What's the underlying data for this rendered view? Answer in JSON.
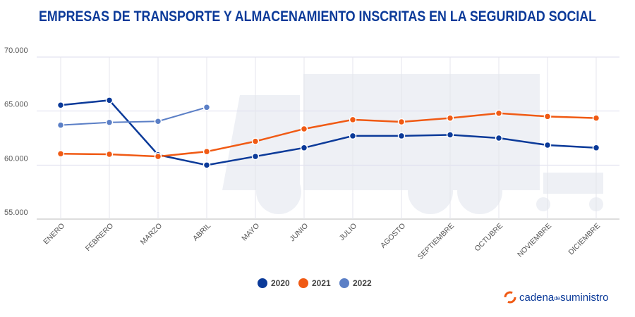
{
  "chart_data": {
    "type": "line",
    "title": "EMPRESAS DE TRANSPORTE Y ALMACENAMIENTO INSCRITAS EN LA SEGURIDAD SOCIAL",
    "categories": [
      "ENERO",
      "FEBRERO",
      "MARZO",
      "ABRIL",
      "MAYO",
      "JUNIO",
      "JULIO",
      "AGOSTO",
      "SEPTIEMBRE",
      "OCTUBRE",
      "NOVIEMBRE",
      "DICIEMBRE"
    ],
    "series": [
      {
        "name": "2020",
        "color": "#0b3a99",
        "values": [
          65550,
          66000,
          60950,
          60000,
          60800,
          61600,
          62700,
          62700,
          62800,
          62500,
          61850,
          61600
        ]
      },
      {
        "name": "2021",
        "color": "#f05a14",
        "values": [
          61050,
          61000,
          60800,
          61250,
          62200,
          63350,
          64200,
          64000,
          64350,
          64800,
          64500,
          64350
        ]
      },
      {
        "name": "2022",
        "color": "#5b7fc6",
        "values": [
          63700,
          63950,
          64050,
          65350,
          null,
          null,
          null,
          null,
          null,
          null,
          null,
          null
        ]
      }
    ],
    "ylim": [
      55000,
      70000
    ],
    "yticks": [
      {
        "value": 55000,
        "label": "55.000"
      },
      {
        "value": 60000,
        "label": "60.000"
      },
      {
        "value": 65000,
        "label": "65.000"
      },
      {
        "value": 70000,
        "label": "70.000"
      }
    ],
    "grid": true,
    "legend": "bottom",
    "logo": [
      "cadena",
      "de",
      "suministro"
    ]
  }
}
